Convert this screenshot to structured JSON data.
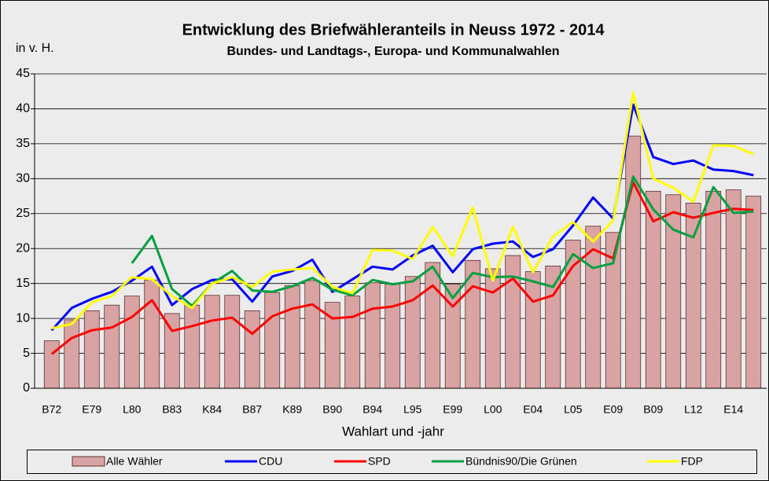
{
  "chart_data": {
    "type": "bar-line",
    "title": "Entwicklung des Briefwähleranteils in Neuss 1972 - 2014",
    "subtitle": "Bundes- und Landtags-, Europa- und Kommunalwahlen",
    "y_label": "in v. H.",
    "x_label": "Wahlart und -jahr",
    "categories": [
      "B72",
      null,
      "E79",
      null,
      "L80",
      null,
      "B83",
      null,
      "K84",
      null,
      "B87",
      null,
      "K89",
      null,
      "B90",
      null,
      "B94",
      null,
      "L95",
      null,
      "E99",
      null,
      "L00",
      null,
      "E04",
      null,
      "L05",
      null,
      "E09",
      null,
      "B09",
      null,
      "L12",
      null,
      "E14",
      null
    ],
    "ylim": [
      0,
      45
    ],
    "yticks": [
      0,
      5,
      10,
      15,
      20,
      25,
      30,
      35,
      40,
      45
    ],
    "grid": true,
    "series": [
      {
        "name": "Alle Wähler",
        "type": "bar",
        "color": "#d9a3a3",
        "values": [
          6.8,
          9.8,
          11.1,
          11.9,
          13.2,
          15.5,
          10.7,
          11.9,
          13.3,
          13.3,
          11.1,
          13.7,
          14.7,
          15.4,
          12.3,
          13.2,
          15.1,
          14.9,
          16.0,
          18.0,
          14.9,
          18.3,
          17.1,
          19.0,
          16.7,
          17.5,
          21.2,
          23.2,
          22.3,
          36.1,
          28.2,
          27.7,
          26.5,
          28.2,
          28.4,
          27.5
        ]
      },
      {
        "name": "CDU",
        "type": "line",
        "color": "#0000ff",
        "values": [
          8.3,
          11.5,
          12.8,
          13.8,
          15.4,
          17.4,
          11.9,
          14.2,
          15.5,
          15.6,
          12.4,
          16.0,
          16.8,
          18.4,
          13.8,
          15.6,
          17.4,
          17.0,
          19.0,
          20.4,
          16.6,
          19.9,
          20.7,
          21.0,
          18.8,
          19.9,
          23.3,
          27.3,
          24.3,
          40.6,
          33.1,
          32.1,
          32.6,
          31.3,
          31.1,
          30.5
        ]
      },
      {
        "name": "SPD",
        "type": "line",
        "color": "#ff0000",
        "values": [
          4.9,
          7.2,
          8.3,
          8.7,
          10.2,
          12.6,
          8.2,
          8.9,
          9.7,
          10.1,
          7.8,
          10.3,
          11.4,
          12.0,
          10.0,
          10.2,
          11.4,
          11.7,
          12.6,
          14.7,
          11.7,
          14.6,
          13.7,
          15.7,
          12.4,
          13.3,
          17.5,
          19.9,
          18.6,
          29.5,
          23.9,
          25.2,
          24.4,
          25.1,
          25.7,
          25.5
        ]
      },
      {
        "name": "Bündnis90/Die Grünen",
        "type": "line",
        "color": "#00a040",
        "values": [
          null,
          null,
          null,
          null,
          17.9,
          21.8,
          14.2,
          11.8,
          15.0,
          16.8,
          14.0,
          13.8,
          14.6,
          15.8,
          14.1,
          13.3,
          15.5,
          14.9,
          15.3,
          17.4,
          12.9,
          16.5,
          15.9,
          16.0,
          15.3,
          14.5,
          19.2,
          17.2,
          17.9,
          30.3,
          25.6,
          22.7,
          21.6,
          28.8,
          25.1,
          25.3
        ]
      },
      {
        "name": "FDP",
        "type": "line",
        "color": "#ffff00",
        "values": [
          8.6,
          9.2,
          12.3,
          13.2,
          15.9,
          15.6,
          13.2,
          11.5,
          15.0,
          15.9,
          14.5,
          16.7,
          17.0,
          17.2,
          14.5,
          13.6,
          19.8,
          19.7,
          18.5,
          23.1,
          18.9,
          25.9,
          15.4,
          23.1,
          16.6,
          21.7,
          23.8,
          21.0,
          24.0,
          42.3,
          30.0,
          28.7,
          26.7,
          34.8,
          34.7,
          33.5
        ]
      }
    ]
  }
}
